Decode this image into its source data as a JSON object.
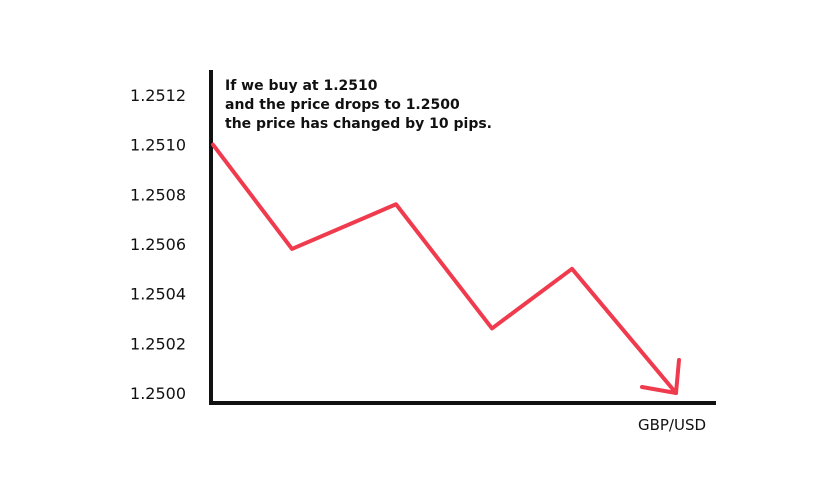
{
  "chart_data": {
    "type": "line",
    "title": "",
    "xlabel": "GBP/USD",
    "ylabel": "",
    "ylim": [
      1.25,
      1.2512
    ],
    "yticks": [
      "1.2500",
      "1.2502",
      "1.2504",
      "1.2506",
      "1.2508",
      "1.2510",
      "1.2512"
    ],
    "grid": false,
    "legend": "none",
    "series": [
      {
        "values": [
          1.251,
          1.25058,
          1.25076,
          1.25026,
          1.2505,
          1.25
        ]
      }
    ],
    "annotation": [
      "If we buy at 1.2510",
      "and the price drops to 1.2500",
      "the price has changed by 10 pips."
    ],
    "end_marker": "arrow",
    "colors": {
      "line": "#ef3b4d",
      "axis": "#111111"
    }
  }
}
